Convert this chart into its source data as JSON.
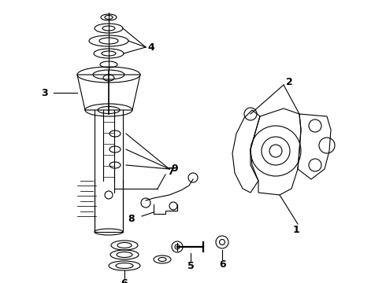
{
  "bg_color": "#ffffff",
  "line_color": "#000000",
  "figsize": [
    4.9,
    3.6
  ],
  "dpi": 100,
  "xlim": [
    0,
    490
  ],
  "ylim": [
    0,
    360
  ]
}
